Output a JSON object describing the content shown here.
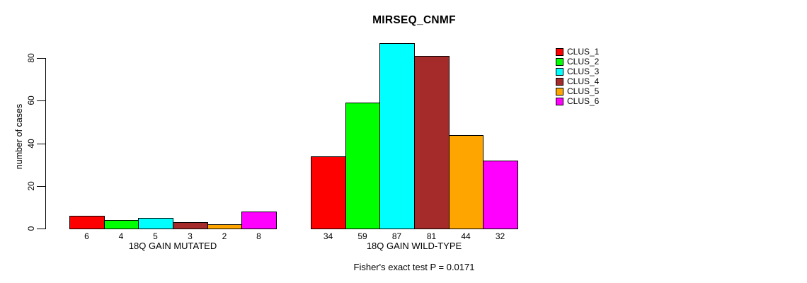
{
  "chart_data": {
    "type": "bar",
    "title": "MIRSEQ_CNMF",
    "ylabel": "number of cases",
    "yticks": [
      0,
      20,
      40,
      60,
      80
    ],
    "ylim": [
      0,
      80
    ],
    "grid": false,
    "legend_position": "right",
    "series": [
      {
        "name": "CLUS_1",
        "color": "#FF0000"
      },
      {
        "name": "CLUS_2",
        "color": "#00FF00"
      },
      {
        "name": "CLUS_3",
        "color": "#00FFFF"
      },
      {
        "name": "CLUS_4",
        "color": "#A52A2A"
      },
      {
        "name": "CLUS_5",
        "color": "#FFA500"
      },
      {
        "name": "CLUS_6",
        "color": "#FF00FF"
      }
    ],
    "groups": [
      {
        "label": "18Q GAIN MUTATED",
        "values": [
          6,
          4,
          5,
          3,
          2,
          8
        ]
      },
      {
        "label": "18Q GAIN WILD-TYPE",
        "values": [
          34,
          59,
          87,
          81,
          44,
          32
        ]
      }
    ],
    "bar_value_labels_shown": true,
    "annotation": "Fisher's exact test P = 0.0171"
  }
}
